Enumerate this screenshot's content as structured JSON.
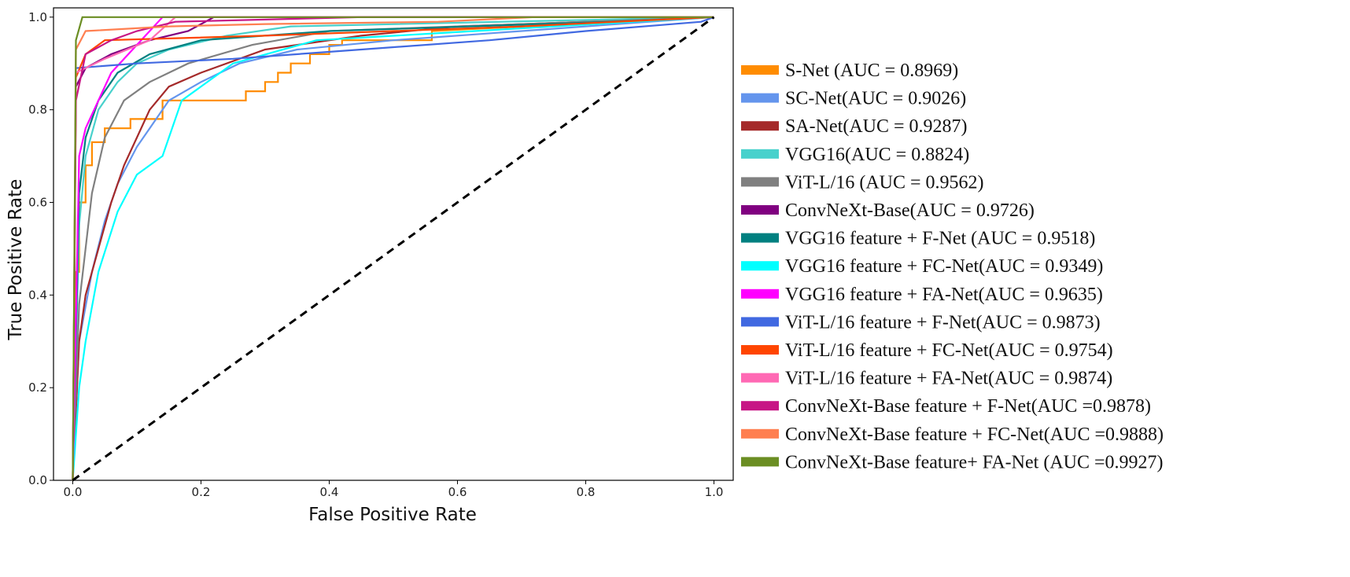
{
  "chart_data": {
    "type": "line",
    "title": "",
    "xlabel": "False Positive Rate",
    "ylabel": "True Positive Rate",
    "xlim": [
      -0.03,
      1.03
    ],
    "ylim": [
      0,
      1.02
    ],
    "xticks": [
      "0.0",
      "0.2",
      "0.4",
      "0.6",
      "0.8",
      "1.0"
    ],
    "yticks": [
      "0.0",
      "0.2",
      "0.4",
      "0.6",
      "0.8",
      "1.0"
    ],
    "grid": false,
    "legend_position": "right",
    "baseline": {
      "style": "dashed",
      "color": "#000000",
      "x": [
        0,
        1
      ],
      "y": [
        0,
        1
      ]
    },
    "series": [
      {
        "name": "S-Net (AUC = 0.8969)",
        "color": "#FF8C00",
        "x": [
          0,
          0.005,
          0.01,
          0.01,
          0.02,
          0.02,
          0.03,
          0.03,
          0.05,
          0.05,
          0.09,
          0.09,
          0.14,
          0.14,
          0.27,
          0.27,
          0.3,
          0.3,
          0.32,
          0.32,
          0.34,
          0.34,
          0.37,
          0.37,
          0.4,
          0.4,
          0.42,
          0.42,
          0.56,
          0.56,
          1.0
        ],
        "y": [
          0,
          0.45,
          0.45,
          0.6,
          0.6,
          0.68,
          0.68,
          0.73,
          0.73,
          0.76,
          0.76,
          0.78,
          0.78,
          0.82,
          0.82,
          0.84,
          0.84,
          0.86,
          0.86,
          0.88,
          0.88,
          0.9,
          0.9,
          0.92,
          0.92,
          0.94,
          0.94,
          0.95,
          0.95,
          0.97,
          1.0
        ]
      },
      {
        "name": "SC-Net(AUC = 0.9026)",
        "color": "#6495ED",
        "x": [
          0,
          0.01,
          0.01,
          0.03,
          0.03,
          0.05,
          0.05,
          0.07,
          0.07,
          0.1,
          0.1,
          0.12,
          0.12,
          0.15,
          0.15,
          0.2,
          0.2,
          0.26,
          0.26,
          0.35,
          0.35,
          0.5,
          0.5,
          0.7,
          0.7,
          1.0
        ],
        "y": [
          0,
          0.3,
          0.3,
          0.45,
          0.45,
          0.56,
          0.56,
          0.64,
          0.64,
          0.72,
          0.72,
          0.76,
          0.76,
          0.82,
          0.82,
          0.86,
          0.86,
          0.9,
          0.9,
          0.93,
          0.93,
          0.95,
          0.95,
          0.97,
          0.97,
          1.0
        ]
      },
      {
        "name": "SA-Net(AUC = 0.9287)",
        "color": "#A52A2A",
        "x": [
          0,
          0.01,
          0.01,
          0.02,
          0.02,
          0.04,
          0.04,
          0.06,
          0.06,
          0.08,
          0.08,
          0.1,
          0.1,
          0.12,
          0.12,
          0.15,
          0.15,
          0.2,
          0.2,
          0.3,
          0.3,
          0.45,
          0.45,
          0.6,
          0.6,
          1.0
        ],
        "y": [
          0,
          0.3,
          0.3,
          0.4,
          0.4,
          0.5,
          0.5,
          0.6,
          0.6,
          0.68,
          0.68,
          0.74,
          0.74,
          0.8,
          0.8,
          0.85,
          0.85,
          0.88,
          0.88,
          0.93,
          0.93,
          0.96,
          0.96,
          0.98,
          0.98,
          1.0
        ]
      },
      {
        "name": "VGG16(AUC  = 0.8824)",
        "color": "#48D1CC",
        "x": [
          0,
          0.01,
          0.01,
          0.02,
          0.02,
          0.04,
          0.04,
          0.07,
          0.07,
          0.1,
          0.1,
          0.15,
          0.15,
          0.24,
          0.24,
          0.34,
          0.34,
          1.0
        ],
        "y": [
          0,
          0.55,
          0.55,
          0.7,
          0.7,
          0.8,
          0.8,
          0.86,
          0.86,
          0.9,
          0.9,
          0.93,
          0.93,
          0.96,
          0.96,
          0.98,
          0.98,
          1.0
        ]
      },
      {
        "name": "ViT-L/16 (AUC = 0.9562)",
        "color": "#808080",
        "x": [
          0,
          0.01,
          0.01,
          0.03,
          0.03,
          0.05,
          0.05,
          0.08,
          0.08,
          0.12,
          0.12,
          0.18,
          0.18,
          0.28,
          0.28,
          0.4,
          0.4,
          1.0
        ],
        "y": [
          0,
          0.38,
          0.38,
          0.62,
          0.62,
          0.74,
          0.74,
          0.82,
          0.82,
          0.86,
          0.86,
          0.9,
          0.9,
          0.94,
          0.94,
          0.97,
          0.97,
          1.0
        ]
      },
      {
        "name": "ConvNeXt-Base(AUC = 0.9726)",
        "color": "#800080",
        "x": [
          0,
          0.005,
          0.005,
          0.02,
          0.02,
          0.06,
          0.06,
          0.12,
          0.12,
          0.18,
          0.18,
          0.22,
          0.22,
          1.0
        ],
        "y": [
          0,
          0.85,
          0.85,
          0.89,
          0.89,
          0.92,
          0.92,
          0.95,
          0.95,
          0.97,
          0.97,
          1.0,
          1.0,
          1.0
        ]
      },
      {
        "name": "VGG16 feature + F-Net (AUC = 0.9518)",
        "color": "#008080",
        "x": [
          0,
          0.01,
          0.01,
          0.02,
          0.02,
          0.04,
          0.04,
          0.07,
          0.07,
          0.12,
          0.12,
          0.2,
          0.2,
          0.4,
          0.4,
          0.84,
          0.84,
          1.0
        ],
        "y": [
          0,
          0.62,
          0.62,
          0.74,
          0.74,
          0.82,
          0.82,
          0.88,
          0.88,
          0.92,
          0.92,
          0.95,
          0.95,
          0.97,
          0.97,
          0.99,
          0.99,
          1.0
        ]
      },
      {
        "name": "VGG16 feature + FC-Net(AUC = 0.9349)",
        "color": "#00FFFF",
        "x": [
          0,
          0.01,
          0.01,
          0.02,
          0.02,
          0.04,
          0.04,
          0.07,
          0.07,
          0.1,
          0.1,
          0.14,
          0.14,
          0.17,
          0.17,
          0.25,
          0.25,
          0.38,
          0.38,
          1.0
        ],
        "y": [
          0,
          0.2,
          0.2,
          0.3,
          0.3,
          0.45,
          0.45,
          0.58,
          0.58,
          0.66,
          0.66,
          0.7,
          0.7,
          0.82,
          0.82,
          0.9,
          0.9,
          0.95,
          0.95,
          1.0
        ]
      },
      {
        "name": "VGG16 feature + FA-Net(AUC = 0.9635)",
        "color": "#FF00FF",
        "x": [
          0,
          0.01,
          0.01,
          0.02,
          0.02,
          0.04,
          0.04,
          0.06,
          0.06,
          0.1,
          0.1,
          0.14,
          0.14,
          1.0
        ],
        "y": [
          0,
          0.7,
          0.7,
          0.76,
          0.76,
          0.82,
          0.82,
          0.88,
          0.88,
          0.94,
          0.94,
          1.0,
          1.0,
          1.0
        ]
      },
      {
        "name": "ViT-L/16 feature + F-Net(AUC = 0.9873)",
        "color": "#4169E1",
        "x": [
          0,
          0.005,
          0.005,
          0.1,
          0.1,
          0.25,
          0.25,
          0.45,
          0.45,
          0.65,
          0.65,
          0.8,
          0.8,
          0.98,
          0.98,
          1.0
        ],
        "y": [
          0,
          0.89,
          0.89,
          0.9,
          0.9,
          0.91,
          0.91,
          0.93,
          0.93,
          0.95,
          0.95,
          0.97,
          0.97,
          0.99,
          0.99,
          1.0
        ]
      },
      {
        "name": "ViT-L/16 feature + FC-Net(AUC = 0.9754)",
        "color": "#FF4500",
        "x": [
          0,
          0.005,
          0.005,
          0.02,
          0.02,
          0.05,
          0.05,
          0.3,
          0.3,
          0.5,
          0.5,
          0.7,
          0.7,
          1.0
        ],
        "y": [
          0,
          0.87,
          0.87,
          0.92,
          0.92,
          0.95,
          0.95,
          0.96,
          0.96,
          0.97,
          0.97,
          0.98,
          0.98,
          1.0
        ]
      },
      {
        "name": "ViT-L/16 feature + FA-Net(AUC = 0.9874)",
        "color": "#FF69B4",
        "x": [
          0,
          0.005,
          0.005,
          0.05,
          0.05,
          0.12,
          0.12,
          0.16,
          0.16,
          1.0
        ],
        "y": [
          0,
          0.88,
          0.88,
          0.91,
          0.91,
          0.95,
          0.95,
          1.0,
          1.0,
          1.0
        ]
      },
      {
        "name": "ConvNeXt-Base feature + F-Net(AUC =0.9878)",
        "color": "#C71585",
        "x": [
          0,
          0.005,
          0.005,
          0.02,
          0.02,
          0.06,
          0.06,
          0.1,
          0.1,
          0.16,
          0.16,
          0.45,
          0.45,
          1.0
        ],
        "y": [
          0,
          0.82,
          0.82,
          0.92,
          0.92,
          0.95,
          0.95,
          0.97,
          0.97,
          0.99,
          0.99,
          1.0,
          1.0,
          1.0
        ]
      },
      {
        "name": "ConvNeXt-Base feature + FC-Net(AUC =0.9888)",
        "color": "#FF7F50",
        "x": [
          0,
          0.005,
          0.005,
          0.02,
          0.02,
          0.15,
          0.15,
          0.3,
          0.3,
          0.57,
          0.57,
          0.72,
          0.72,
          1.0
        ],
        "y": [
          0,
          0.93,
          0.93,
          0.97,
          0.97,
          0.98,
          0.98,
          0.985,
          0.985,
          0.99,
          0.99,
          1.0,
          1.0,
          1.0
        ]
      },
      {
        "name": "ConvNeXt-Base feature+ FA-Net (AUC =0.9927)",
        "color": "#6B8E23",
        "x": [
          0,
          0.005,
          0.005,
          0.015,
          0.015,
          1.0
        ],
        "y": [
          0,
          0.95,
          0.95,
          1.0,
          1.0,
          1.0
        ]
      }
    ]
  }
}
